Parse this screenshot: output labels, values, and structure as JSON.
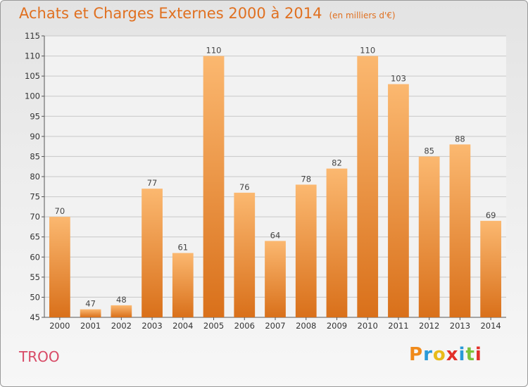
{
  "title": {
    "main": "Achats et Charges Externes 2000 à 2014",
    "unit": "(en milliers d'€)"
  },
  "commune": "TROO",
  "brand": {
    "letters": [
      "P",
      "r",
      "o",
      "x",
      "i",
      "t",
      "i"
    ],
    "colors": [
      "#f08a1a",
      "#2a9ad8",
      "#e8bb1a",
      "#e2302a",
      "#2a9ad8",
      "#7cc23a",
      "#e2302a"
    ]
  },
  "colors": {
    "bar_light": "#fbb870",
    "bar_dark": "#d9701a",
    "title": "#e07020",
    "commune": "#d84a66",
    "grid": "#c8c8c8"
  },
  "chart_data": {
    "type": "bar",
    "title": "Achats et Charges Externes 2000 à 2014",
    "subtitle": "(en milliers d'€)",
    "xlabel": "",
    "ylabel": "",
    "categories": [
      "2000",
      "2001",
      "2002",
      "2003",
      "2004",
      "2005",
      "2006",
      "2007",
      "2008",
      "2009",
      "2010",
      "2011",
      "2012",
      "2013",
      "2014"
    ],
    "values": [
      70,
      47,
      48,
      77,
      61,
      110,
      76,
      64,
      78,
      82,
      110,
      103,
      85,
      88,
      69
    ],
    "ylim": [
      45,
      115
    ],
    "yticks": [
      45,
      50,
      55,
      60,
      65,
      70,
      75,
      80,
      85,
      90,
      95,
      100,
      105,
      110,
      115
    ],
    "grid": true,
    "show_value_labels": true
  }
}
